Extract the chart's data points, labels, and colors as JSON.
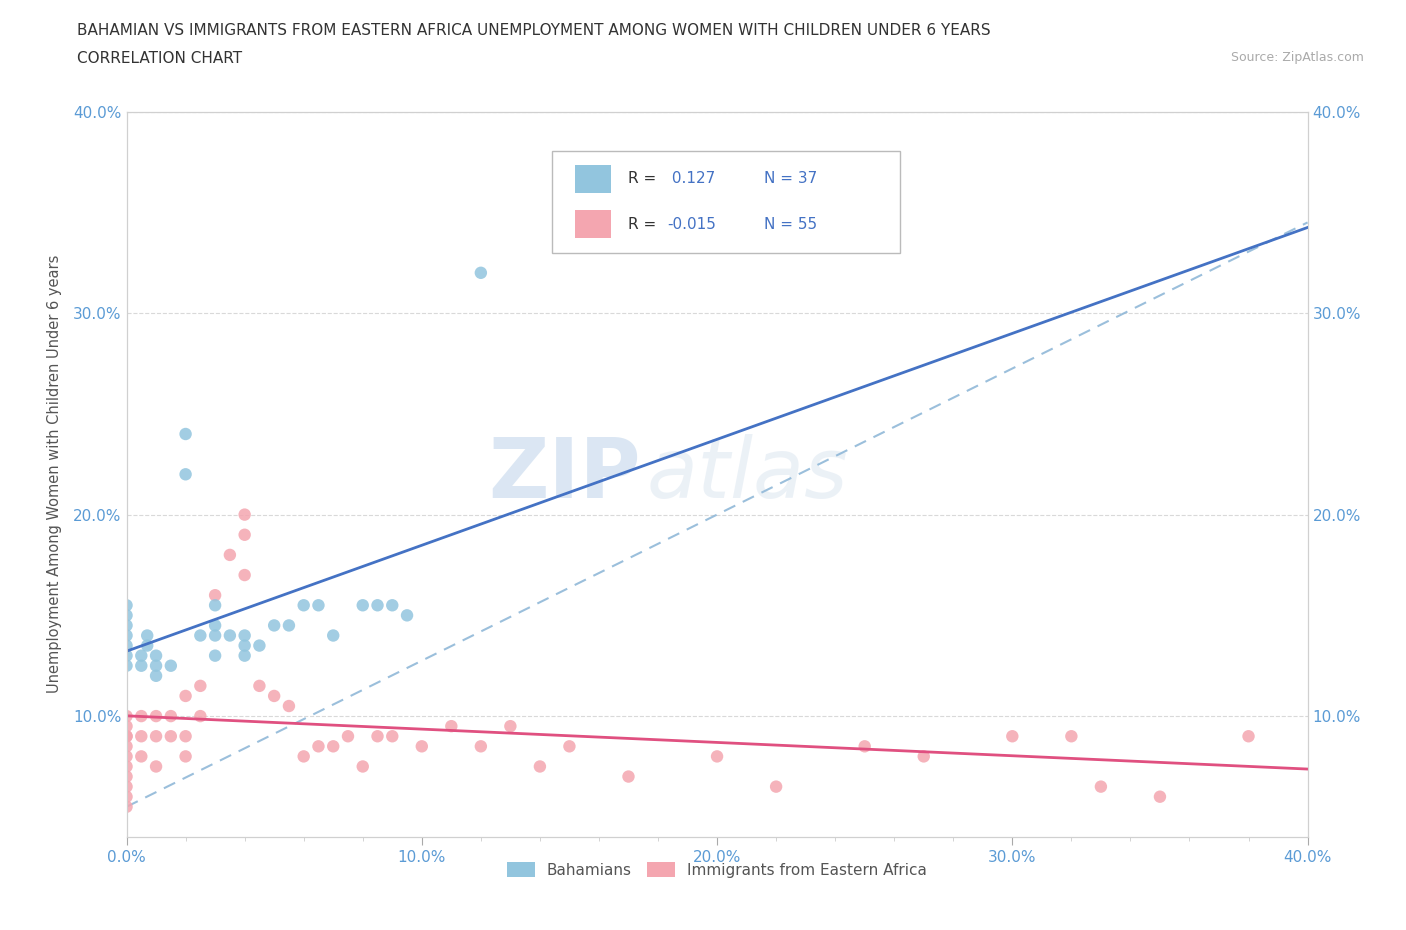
{
  "title_line1": "BAHAMIAN VS IMMIGRANTS FROM EASTERN AFRICA UNEMPLOYMENT AMONG WOMEN WITH CHILDREN UNDER 6 YEARS",
  "title_line2": "CORRELATION CHART",
  "source": "Source: ZipAtlas.com",
  "ylabel": "Unemployment Among Women with Children Under 6 years",
  "xlim": [
    0.0,
    0.4
  ],
  "ylim": [
    0.04,
    0.4
  ],
  "xtick_labels": [
    "0.0%",
    "",
    "",
    "",
    "",
    "10.0%",
    "",
    "",
    "",
    "",
    "20.0%",
    "",
    "",
    "",
    "",
    "30.0%",
    "",
    "",
    "",
    "",
    "40.0%"
  ],
  "xtick_values": [
    0.0,
    0.02,
    0.04,
    0.06,
    0.08,
    0.1,
    0.12,
    0.14,
    0.16,
    0.18,
    0.2,
    0.22,
    0.24,
    0.26,
    0.28,
    0.3,
    0.32,
    0.34,
    0.36,
    0.38,
    0.4
  ],
  "xtick_major_labels": [
    "0.0%",
    "10.0%",
    "20.0%",
    "30.0%",
    "40.0%"
  ],
  "xtick_major_values": [
    0.0,
    0.1,
    0.2,
    0.3,
    0.4
  ],
  "ytick_labels": [
    "10.0%",
    "20.0%",
    "30.0%",
    "40.0%"
  ],
  "ytick_values": [
    0.1,
    0.2,
    0.3,
    0.4
  ],
  "watermark_zip": "ZIP",
  "watermark_atlas": "atlas",
  "color_bahamian": "#92c5de",
  "color_eastern_africa": "#f4a6b0",
  "color_line_bahamian": "#4472c4",
  "color_line_eastern_africa": "#e05080",
  "color_dashed_line": "#90b8d8",
  "bahamian_x": [
    0.0,
    0.0,
    0.0,
    0.0,
    0.0,
    0.0,
    0.0,
    0.005,
    0.005,
    0.007,
    0.007,
    0.01,
    0.01,
    0.01,
    0.015,
    0.02,
    0.02,
    0.025,
    0.03,
    0.03,
    0.03,
    0.03,
    0.035,
    0.04,
    0.04,
    0.04,
    0.045,
    0.05,
    0.055,
    0.06,
    0.065,
    0.07,
    0.08,
    0.085,
    0.09,
    0.095,
    0.12
  ],
  "bahamian_y": [
    0.125,
    0.13,
    0.135,
    0.14,
    0.145,
    0.15,
    0.155,
    0.125,
    0.13,
    0.135,
    0.14,
    0.12,
    0.125,
    0.13,
    0.125,
    0.22,
    0.24,
    0.14,
    0.13,
    0.14,
    0.145,
    0.155,
    0.14,
    0.13,
    0.135,
    0.14,
    0.135,
    0.145,
    0.145,
    0.155,
    0.155,
    0.14,
    0.155,
    0.155,
    0.155,
    0.15,
    0.32
  ],
  "eastern_africa_x": [
    0.0,
    0.0,
    0.0,
    0.0,
    0.0,
    0.0,
    0.0,
    0.0,
    0.0,
    0.0,
    0.0,
    0.005,
    0.005,
    0.005,
    0.01,
    0.01,
    0.01,
    0.015,
    0.015,
    0.02,
    0.02,
    0.02,
    0.025,
    0.025,
    0.03,
    0.035,
    0.04,
    0.04,
    0.04,
    0.045,
    0.05,
    0.055,
    0.06,
    0.065,
    0.07,
    0.075,
    0.08,
    0.085,
    0.09,
    0.1,
    0.11,
    0.12,
    0.13,
    0.14,
    0.15,
    0.17,
    0.2,
    0.22,
    0.25,
    0.27,
    0.3,
    0.32,
    0.33,
    0.35,
    0.38
  ],
  "eastern_africa_y": [
    0.055,
    0.06,
    0.065,
    0.07,
    0.075,
    0.08,
    0.085,
    0.09,
    0.09,
    0.095,
    0.1,
    0.08,
    0.09,
    0.1,
    0.075,
    0.09,
    0.1,
    0.09,
    0.1,
    0.08,
    0.09,
    0.11,
    0.1,
    0.115,
    0.16,
    0.18,
    0.17,
    0.19,
    0.2,
    0.115,
    0.11,
    0.105,
    0.08,
    0.085,
    0.085,
    0.09,
    0.075,
    0.09,
    0.09,
    0.085,
    0.095,
    0.085,
    0.095,
    0.075,
    0.085,
    0.07,
    0.08,
    0.065,
    0.085,
    0.08,
    0.09,
    0.09,
    0.065,
    0.06,
    0.09
  ],
  "legend_r1_label": "R = ",
  "legend_r1_val": " 0.127",
  "legend_n1": "N = 37",
  "legend_r2_label": "R = ",
  "legend_r2_val": "-0.015",
  "legend_n2": "N = 55"
}
